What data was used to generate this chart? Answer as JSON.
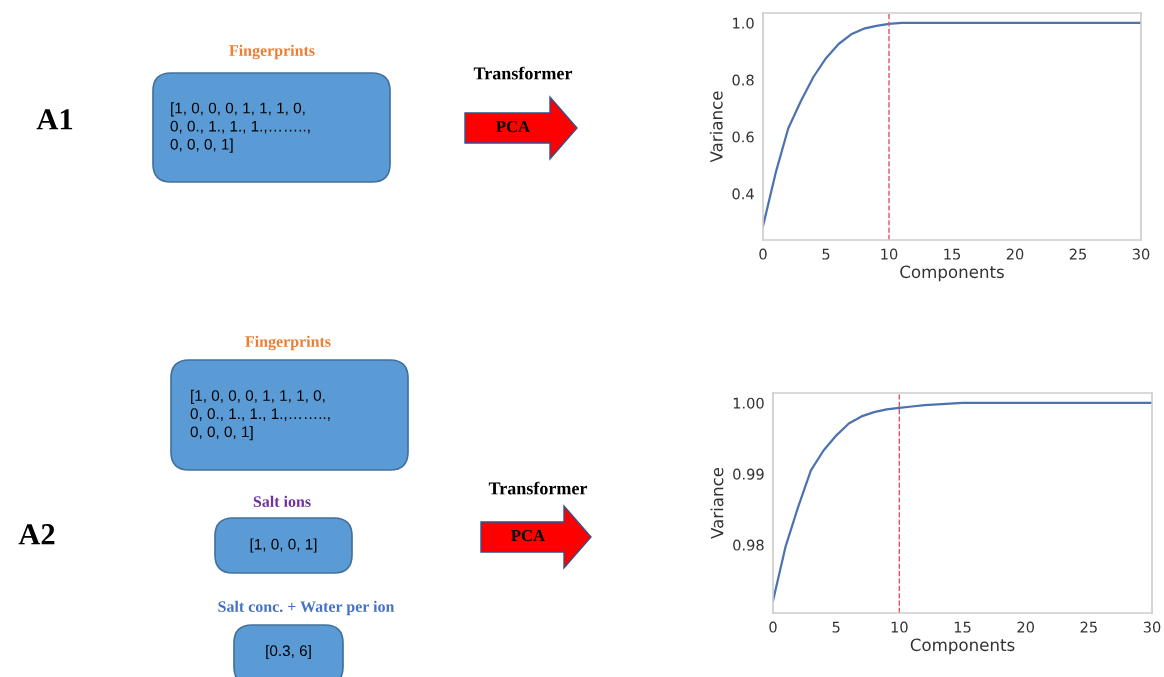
{
  "chart_data": [
    {
      "type": "other",
      "title": "A1",
      "annotations": [
        "Fingerprints",
        "[1, 0, 0, 0, 1, 1, 1, 0,\n0, 0., 1., 1., 1.,……..,\n0, 0, 0, 1]",
        "Transformer",
        "PCA"
      ]
    },
    {
      "type": "line",
      "xlabel": "Components",
      "ylabel": "Variance",
      "x": [
        0,
        1,
        2,
        3,
        4,
        5,
        6,
        7,
        8,
        9,
        10,
        11,
        12,
        13,
        14,
        15,
        16,
        17,
        18,
        19,
        20,
        21,
        22,
        23,
        24,
        25,
        26,
        27,
        28,
        29,
        30
      ],
      "series": [
        {
          "color": "#4c72b0",
          "values": [
            0.286,
            0.472,
            0.629,
            0.725,
            0.81,
            0.876,
            0.926,
            0.96,
            0.98,
            0.99,
            0.997,
            1.0,
            1.0,
            1.0,
            1.0,
            1.0,
            1.0,
            1.0,
            1.0,
            1.0,
            1.0,
            1.0,
            1.0,
            1.0,
            1.0,
            1.0,
            1.0,
            1.0,
            1.0,
            1.0,
            1.0
          ]
        }
      ],
      "xlim": [
        0,
        30
      ],
      "xticks": [
        0,
        5,
        10,
        15,
        20,
        25,
        30
      ],
      "ylim": [
        0.237,
        1.035
      ],
      "yticks": [
        0.4,
        0.6,
        0.8,
        {
          "value": 1.0,
          "label": "1.0"
        }
      ],
      "ref_lines": [
        {
          "axis": "x",
          "value": 10,
          "color": "#e0535a",
          "line_style": "dashed"
        }
      ],
      "grid": false,
      "marker": "none",
      "line_style": "solid"
    },
    {
      "type": "other",
      "title": "A2",
      "annotations": [
        "Fingerprints",
        "[1, 0, 0, 0, 1, 1, 1, 0,\n0, 0., 1., 1., 1.,……..,\n0, 0, 0, 1]",
        "Salt ions",
        "[1, 0, 0, 1]",
        "Salt conc. + Water per ion",
        "[0.3, 6]",
        "Transformer",
        "PCA"
      ]
    },
    {
      "type": "line",
      "xlabel": "Components",
      "ylabel": "Variance",
      "x": [
        0,
        1,
        2,
        3,
        4,
        5,
        6,
        7,
        8,
        9,
        10,
        11,
        12,
        13,
        14,
        15,
        16,
        17,
        18,
        19,
        20,
        21,
        22,
        23,
        24,
        25,
        26,
        27,
        28,
        29,
        30
      ],
      "series": [
        {
          "color": "#4c72b0",
          "values": [
            0.9721,
            0.9798,
            0.9854,
            0.9905,
            0.9933,
            0.9954,
            0.9971,
            0.9981,
            0.9987,
            0.9991,
            0.9993,
            0.9995,
            0.9997,
            0.9998,
            0.9999,
            1.0,
            1.0,
            1.0,
            1.0,
            1.0,
            1.0,
            1.0,
            1.0,
            1.0,
            1.0,
            1.0,
            1.0,
            1.0,
            1.0,
            1.0,
            1.0
          ]
        }
      ],
      "xlim": [
        0,
        30
      ],
      "xticks": [
        0,
        5,
        10,
        15,
        20,
        25,
        30
      ],
      "ylim": [
        0.9704,
        1.0014
      ],
      "yticks": [
        0.98,
        0.99,
        {
          "value": 1.0,
          "label": "1.00"
        }
      ],
      "ref_lines": [
        {
          "axis": "x",
          "value": 10,
          "color": "#e0535a",
          "line_style": "dashed"
        }
      ],
      "grid": false,
      "marker": "none",
      "line_style": "solid"
    }
  ]
}
